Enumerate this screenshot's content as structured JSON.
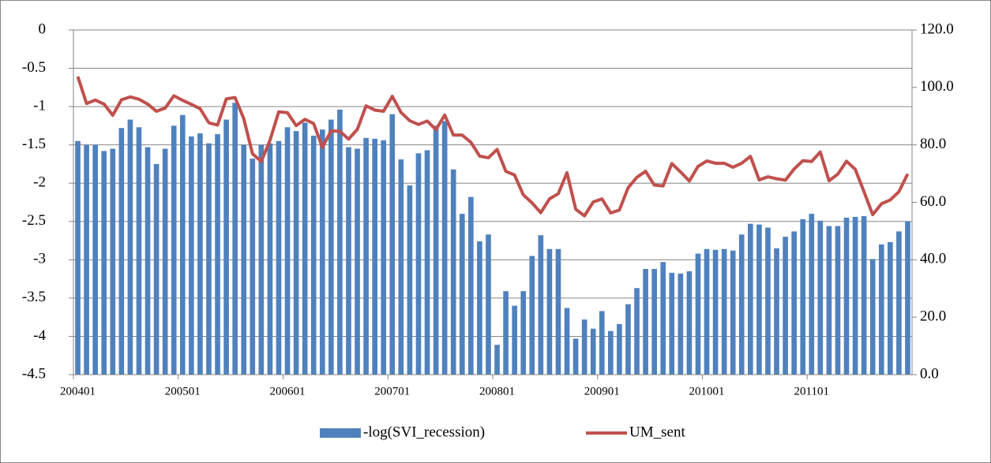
{
  "chart_data": {
    "type": "bar-line",
    "categories": [
      "200401",
      null,
      null,
      null,
      null,
      null,
      null,
      null,
      null,
      null,
      null,
      null,
      "200501",
      null,
      null,
      null,
      null,
      null,
      null,
      null,
      null,
      null,
      null,
      null,
      "200601",
      null,
      null,
      null,
      null,
      null,
      null,
      null,
      null,
      null,
      null,
      null,
      "200701",
      null,
      null,
      null,
      null,
      null,
      null,
      null,
      null,
      null,
      null,
      null,
      "200801",
      null,
      null,
      null,
      null,
      null,
      null,
      null,
      null,
      null,
      null,
      null,
      "200901",
      null,
      null,
      null,
      null,
      null,
      null,
      null,
      null,
      null,
      null,
      null,
      "201001",
      null,
      null,
      null,
      null,
      null,
      null,
      null,
      null,
      null,
      null,
      null,
      "201101",
      null,
      null,
      null,
      null,
      null,
      null,
      null,
      null,
      null,
      null,
      null
    ],
    "series": [
      {
        "name": "-log(SVI_recession)",
        "type": "bar",
        "color": "#4f81bd",
        "values": [
          -1.45,
          -1.5,
          -1.5,
          -1.58,
          -1.55,
          -1.28,
          -1.17,
          -1.27,
          -1.53,
          -1.75,
          -1.55,
          -1.25,
          -1.11,
          -1.39,
          -1.35,
          -1.48,
          -1.36,
          -1.17,
          -0.95,
          -1.5,
          -1.68,
          -1.5,
          -1.48,
          -1.45,
          -1.27,
          -1.32,
          -1.21,
          -1.38,
          -1.3,
          -1.17,
          -1.04,
          -1.53,
          -1.55,
          -1.41,
          -1.42,
          -1.44,
          -1.1,
          -1.69,
          -2.03,
          -1.61,
          -1.57,
          -1.25,
          -1.19,
          -1.82,
          -2.4,
          -2.18,
          -2.76,
          -2.67,
          -4.11,
          -3.41,
          -3.6,
          -3.41,
          -2.95,
          -2.68,
          -2.86,
          -2.86,
          -3.63,
          -4.03,
          -3.78,
          -3.9,
          -3.67,
          -3.93,
          -3.84,
          -3.58,
          -3.37,
          -3.12,
          -3.12,
          -3.03,
          -3.17,
          -3.18,
          -3.15,
          -2.92,
          -2.86,
          -2.87,
          -2.86,
          -2.88,
          -2.67,
          -2.53,
          -2.54,
          -2.58,
          -2.85,
          -2.7,
          -2.63,
          -2.47,
          -2.4,
          -2.49,
          -2.56,
          -2.56,
          -2.45,
          -2.44,
          -2.43,
          -2.99,
          -2.8,
          -2.77,
          -2.63,
          -2.5
        ]
      },
      {
        "name": "UM_sent",
        "type": "line",
        "axis": "y2",
        "color": "#c0504d",
        "values": [
          103.8,
          94.4,
          95.6,
          94.2,
          90.3,
          95.7,
          96.7,
          95.9,
          94.2,
          91.7,
          92.8,
          97.1,
          95.5,
          94.1,
          92.6,
          87.7,
          86.9,
          96.0,
          96.5,
          89.1,
          76.9,
          74.2,
          81.6,
          91.5,
          91.2,
          86.7,
          88.9,
          87.4,
          79.1,
          84.9,
          84.7,
          82.0,
          85.4,
          93.6,
          92.1,
          91.7,
          96.9,
          91.3,
          88.4,
          87.1,
          88.3,
          85.3,
          90.4,
          83.4,
          83.4,
          80.9,
          76.1,
          75.5,
          78.4,
          70.8,
          69.5,
          62.6,
          59.8,
          56.4,
          61.2,
          63.0,
          70.3,
          57.6,
          55.3,
          60.1,
          61.2,
          56.3,
          57.3,
          65.1,
          68.7,
          70.8,
          66.0,
          65.7,
          73.5,
          70.6,
          67.4,
          72.5,
          74.4,
          73.6,
          73.6,
          72.2,
          73.6,
          76.0,
          67.8,
          68.9,
          68.2,
          67.7,
          71.6,
          74.5,
          74.2,
          77.5,
          67.5,
          69.8,
          74.3,
          71.5,
          63.7,
          55.7,
          59.5,
          60.8,
          63.7,
          69.9
        ]
      }
    ],
    "ylim": [
      -4.5,
      0
    ],
    "yticks": [
      0,
      -0.5,
      -1,
      -1.5,
      -2,
      -2.5,
      -3,
      -3.5,
      -4,
      -4.5
    ],
    "y2lim": [
      0,
      120
    ],
    "y2ticks": [
      {
        "value": 0,
        "label": "0.0"
      },
      {
        "value": 20,
        "label": "20.0"
      },
      {
        "value": 40,
        "label": "40.0"
      },
      {
        "value": 60,
        "label": "60.0"
      },
      {
        "value": 80,
        "label": "80.0"
      },
      {
        "value": 100,
        "label": "100.0"
      },
      {
        "value": 120,
        "label": "120.0"
      }
    ],
    "grid": true,
    "legend": "bottom"
  }
}
